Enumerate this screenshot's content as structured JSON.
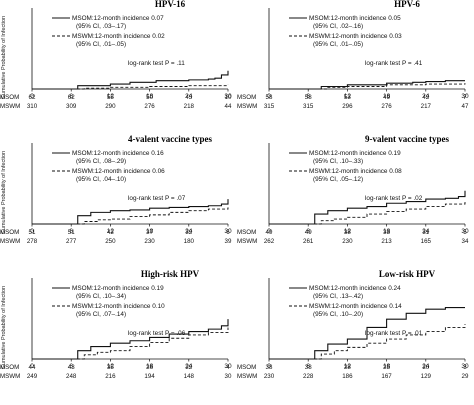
{
  "chart_data": [
    {
      "type": "line",
      "title": "HPV-16",
      "ylabel": "Cumulative Probability of Infection",
      "xlim": [
        0,
        30
      ],
      "ylim": [
        0,
        1
      ],
      "x_ticks": [
        0,
        6,
        12,
        18,
        24,
        30
      ],
      "series": [
        {
          "name": "MSOM:12-month incidence 0.07",
          "ci": "(95% CI, .03–.17)",
          "style": "solid",
          "x": [
            0,
            6,
            7,
            12,
            15,
            19,
            24,
            27,
            28,
            29,
            30
          ],
          "y": [
            0,
            0,
            0.04,
            0.06,
            0.08,
            0.1,
            0.11,
            0.12,
            0.13,
            0.17,
            0.22
          ]
        },
        {
          "name": "MSWM:12-month incidence 0.02",
          "ci": "(95% CI, .01–.05)",
          "style": "dashed",
          "x": [
            0,
            6,
            8,
            12,
            18,
            24,
            30
          ],
          "y": [
            0,
            0,
            0.01,
            0.02,
            0.03,
            0.04,
            0.05
          ]
        }
      ],
      "annotation": "log-rank test P = .11",
      "risk_table": {
        "labels": [
          "MSOM",
          "MSWM"
        ],
        "x": [
          0,
          6,
          12,
          18,
          24,
          30
        ],
        "rows": [
          [
            "62",
            "62",
            "55",
            "50",
            "43",
            "10"
          ],
          [
            "310",
            "309",
            "290",
            "276",
            "218",
            "44"
          ]
        ]
      }
    },
    {
      "type": "line",
      "title": "HPV-6",
      "ylabel": "",
      "xlim": [
        0,
        30
      ],
      "ylim": [
        0,
        1
      ],
      "x_ticks": [
        0,
        6,
        12,
        18,
        24,
        30
      ],
      "series": [
        {
          "name": "MSOM:12-month incidence 0.05",
          "ci": "(95% CI, .02–.16)",
          "style": "solid",
          "x": [
            0,
            6,
            8,
            12,
            18,
            22,
            24,
            27,
            30
          ],
          "y": [
            0,
            0,
            0.03,
            0.05,
            0.07,
            0.08,
            0.09,
            0.1,
            0.1
          ]
        },
        {
          "name": "MSWM:12-month incidence 0.03",
          "ci": "(95% CI, .01–.05)",
          "style": "dashed",
          "x": [
            0,
            6,
            9,
            12,
            18,
            24,
            30
          ],
          "y": [
            0,
            0,
            0.02,
            0.03,
            0.05,
            0.06,
            0.07
          ]
        }
      ],
      "annotation": "log-rank test P = .41",
      "risk_table": {
        "labels": [
          "MSOM",
          "MSWM"
        ],
        "x": [
          0,
          6,
          12,
          18,
          24,
          30
        ],
        "rows": [
          [
            "58",
            "58",
            "53",
            "49",
            "42",
            "7"
          ],
          [
            "315",
            "315",
            "296",
            "276",
            "217",
            "47"
          ]
        ]
      }
    },
    {
      "type": "line",
      "title": "4-valent vaccine types",
      "ylabel": "Cumulative Probability of Infection",
      "xlim": [
        0,
        30
      ],
      "ylim": [
        0,
        1
      ],
      "x_ticks": [
        0,
        6,
        12,
        18,
        24,
        30
      ],
      "series": [
        {
          "name": "MSOM:12-month incidence 0.16",
          "ci": "(95% CI, .08–.29)",
          "style": "solid",
          "x": [
            0,
            6,
            7,
            9,
            12,
            15,
            18,
            21,
            24,
            27,
            29,
            30
          ],
          "y": [
            0,
            0,
            0.1,
            0.14,
            0.16,
            0.17,
            0.19,
            0.2,
            0.21,
            0.22,
            0.24,
            0.3
          ]
        },
        {
          "name": "MSWM:12-month incidence 0.06",
          "ci": "(95% CI, .04–.10)",
          "style": "dashed",
          "x": [
            0,
            6,
            8,
            10,
            12,
            15,
            18,
            21,
            24,
            27,
            30
          ],
          "y": [
            0,
            0,
            0.03,
            0.05,
            0.06,
            0.09,
            0.11,
            0.14,
            0.16,
            0.18,
            0.2
          ]
        }
      ],
      "annotation": "log-rank test P = .07",
      "risk_table": {
        "labels": [
          "MSOM",
          "MSWM"
        ],
        "x": [
          0,
          6,
          12,
          18,
          24,
          30
        ],
        "rows": [
          [
            "51",
            "51",
            "42",
            "37",
            "32",
            "6"
          ],
          [
            "278",
            "277",
            "250",
            "230",
            "180",
            "39"
          ]
        ]
      }
    },
    {
      "type": "line",
      "title": "9-valent vaccine types",
      "ylabel": "",
      "xlim": [
        0,
        30
      ],
      "ylim": [
        0,
        1
      ],
      "x_ticks": [
        0,
        6,
        12,
        18,
        24,
        30
      ],
      "series": [
        {
          "name": "MSOM:12-month incidence 0.19",
          "ci": "(95% CI, .10–.33)",
          "style": "solid",
          "x": [
            0,
            6,
            7,
            9,
            12,
            15,
            18,
            21,
            24,
            27,
            29,
            30
          ],
          "y": [
            0,
            0,
            0.12,
            0.16,
            0.19,
            0.21,
            0.25,
            0.27,
            0.3,
            0.31,
            0.33,
            0.4
          ]
        },
        {
          "name": "MSWM:12-month incidence 0.08",
          "ci": "(95% CI, .05–.12)",
          "style": "dashed",
          "x": [
            0,
            6,
            8,
            10,
            12,
            15,
            18,
            21,
            24,
            27,
            30
          ],
          "y": [
            0,
            0,
            0.04,
            0.06,
            0.08,
            0.12,
            0.15,
            0.18,
            0.21,
            0.24,
            0.27
          ]
        }
      ],
      "annotation": "log-rank test P = .02",
      "risk_table": {
        "labels": [
          "MSOM",
          "MSWM"
        ],
        "x": [
          0,
          6,
          12,
          18,
          24,
          30
        ],
        "rows": [
          [
            "49",
            "49",
            "38",
            "33",
            "31",
            "5"
          ],
          [
            "262",
            "261",
            "230",
            "213",
            "165",
            "34"
          ]
        ]
      }
    },
    {
      "type": "line",
      "title": "High-risk HPV",
      "ylabel": "Cumulative Probability of Infection",
      "xlim": [
        0,
        30
      ],
      "ylim": [
        0,
        1
      ],
      "x_ticks": [
        0,
        6,
        12,
        18,
        24,
        30
      ],
      "series": [
        {
          "name": "MSOM:12-month incidence 0.19",
          "ci": "(95% CI, .10–.34)",
          "style": "solid",
          "x": [
            0,
            6,
            7,
            9,
            12,
            15,
            18,
            21,
            24,
            27,
            29,
            30
          ],
          "y": [
            0,
            0,
            0.1,
            0.15,
            0.19,
            0.22,
            0.26,
            0.3,
            0.33,
            0.36,
            0.4,
            0.48
          ]
        },
        {
          "name": "MSWM:12-month incidence 0.10",
          "ci": "(95% CI, .07–.14)",
          "style": "dashed",
          "x": [
            0,
            6,
            8,
            10,
            12,
            15,
            18,
            21,
            24,
            27,
            30
          ],
          "y": [
            0,
            0,
            0.05,
            0.08,
            0.1,
            0.15,
            0.2,
            0.25,
            0.29,
            0.32,
            0.38
          ]
        }
      ],
      "annotation": "log-rank test P = .06",
      "risk_table": {
        "labels": [
          "MSOM",
          "MSWM"
        ],
        "x": [
          0,
          6,
          12,
          18,
          24,
          30
        ],
        "rows": [
          [
            "44",
            "43",
            "35",
            "26",
            "22",
            "4"
          ],
          [
            "249",
            "248",
            "216",
            "194",
            "148",
            "30"
          ]
        ]
      }
    },
    {
      "type": "line",
      "title": "Low-risk HPV",
      "ylabel": "",
      "xlim": [
        0,
        30
      ],
      "ylim": [
        0,
        1
      ],
      "x_ticks": [
        0,
        6,
        12,
        18,
        24,
        30
      ],
      "series": [
        {
          "name": "MSOM:12-month incidence 0.24",
          "ci": "(95% CI, .13–.42)",
          "style": "solid",
          "x": [
            0,
            6,
            7,
            9,
            12,
            15,
            18,
            21,
            24,
            27,
            30
          ],
          "y": [
            0,
            0,
            0.1,
            0.18,
            0.24,
            0.38,
            0.48,
            0.55,
            0.6,
            0.62,
            0.62
          ]
        },
        {
          "name": "MSWM:12-month incidence 0.14",
          "ci": "(95% CI, .10–.20)",
          "style": "dashed",
          "x": [
            0,
            6,
            8,
            10,
            12,
            15,
            18,
            21,
            24,
            27,
            30
          ],
          "y": [
            0,
            0,
            0.06,
            0.1,
            0.14,
            0.19,
            0.24,
            0.29,
            0.33,
            0.38,
            0.42
          ]
        }
      ],
      "annotation": "log-rank test P = .01",
      "risk_table": {
        "labels": [
          "MSOM",
          "MSWM"
        ],
        "x": [
          0,
          6,
          12,
          18,
          24,
          30
        ],
        "rows": [
          [
            "38",
            "38",
            "28",
            "25",
            "20",
            "3"
          ],
          [
            "230",
            "228",
            "186",
            "167",
            "129",
            "29"
          ]
        ]
      }
    }
  ]
}
